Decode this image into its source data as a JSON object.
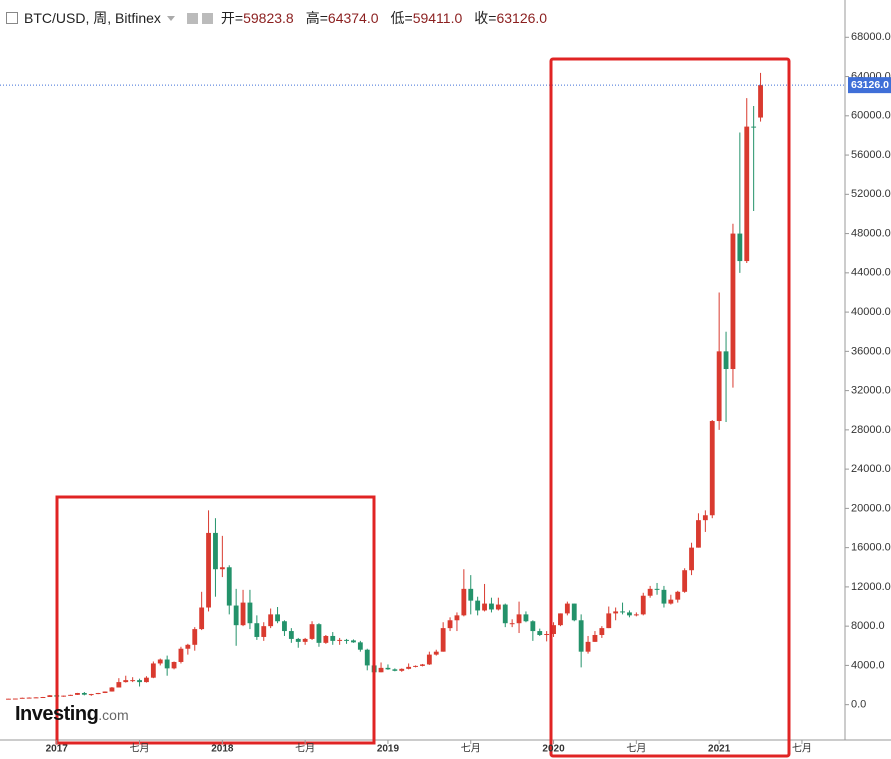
{
  "chart_data": {
    "type": "candlestick",
    "title": "BTC/USD, 周, Bitfinex",
    "ohlc_labels": [
      "开=",
      "高=",
      "低=",
      "收="
    ],
    "ohlc_values": [
      59823.8,
      64374.0,
      59411.0,
      63126.0
    ],
    "ohlc_value_labels": [
      "59823.8",
      "64374.0",
      "59411.0",
      "63126.0"
    ],
    "last_price": {
      "value": 63126.0,
      "label": "63126.0"
    },
    "brand": [
      "Investing",
      ".com"
    ],
    "up_color": "#d93a2f",
    "down_color": "#23926a",
    "ylim": [
      -3600,
      71800
    ],
    "yticks": [
      {
        "value": 0,
        "label": "0.0"
      },
      {
        "value": 4000,
        "label": "4000.0"
      },
      {
        "value": 8000,
        "label": "8000.0"
      },
      {
        "value": 12000,
        "label": "12000.0"
      },
      {
        "value": 16000,
        "label": "16000.0"
      },
      {
        "value": 20000,
        "label": "20000.0"
      },
      {
        "value": 24000,
        "label": "24000.0"
      },
      {
        "value": 28000,
        "label": "28000.0"
      },
      {
        "value": 32000,
        "label": "32000.0"
      },
      {
        "value": 36000,
        "label": "36000.0"
      },
      {
        "value": 40000,
        "label": "40000.0"
      },
      {
        "value": 44000,
        "label": "44000.0"
      },
      {
        "value": 48000,
        "label": "48000.0"
      },
      {
        "value": 52000,
        "label": "52000.0"
      },
      {
        "value": 56000,
        "label": "56000.0"
      },
      {
        "value": 60000,
        "label": "60000.0"
      },
      {
        "value": 64000,
        "label": "64000.0"
      },
      {
        "value": 68000,
        "label": "68000.0"
      }
    ],
    "categories": [
      null,
      null,
      null,
      null,
      null,
      null,
      null,
      "2017",
      null,
      null,
      null,
      null,
      null,
      null,
      null,
      null,
      null,
      null,
      null,
      "七月",
      null,
      null,
      null,
      null,
      null,
      null,
      null,
      null,
      null,
      null,
      null,
      "2018",
      null,
      null,
      null,
      null,
      null,
      null,
      null,
      null,
      null,
      null,
      null,
      "七月",
      null,
      null,
      null,
      null,
      null,
      null,
      null,
      null,
      null,
      null,
      null,
      "2019",
      null,
      null,
      null,
      null,
      null,
      null,
      null,
      null,
      null,
      null,
      null,
      "七月",
      null,
      null,
      null,
      null,
      null,
      null,
      null,
      null,
      null,
      null,
      null,
      "2020",
      null,
      null,
      null,
      null,
      null,
      null,
      null,
      null,
      null,
      null,
      null,
      "七月",
      null,
      null,
      null,
      null,
      null,
      null,
      null,
      null,
      null,
      null,
      null,
      "2021",
      null,
      null,
      null,
      null,
      null,
      null,
      null,
      null,
      null,
      null,
      null,
      "七月"
    ],
    "open": [
      600,
      610,
      625,
      700,
      720,
      745,
      780,
      960,
      820,
      920,
      1000,
      1190,
      1020,
      1080,
      1190,
      1340,
      1750,
      2300,
      2500,
      2500,
      2300,
      2750,
      4200,
      4600,
      3700,
      4350,
      5700,
      6100,
      7700,
      9900,
      17500,
      13800,
      14000,
      10100,
      8100,
      10400,
      8300,
      6900,
      8000,
      9200,
      8500,
      7500,
      6700,
      6400,
      6700,
      8200,
      6300,
      7000,
      6500,
      6600,
      6550,
      6350,
      5600,
      4000,
      3300,
      3750,
      3600,
      3450,
      3650,
      3850,
      3950,
      4100,
      5100,
      5400,
      7800,
      8600,
      9100,
      11800,
      10600,
      9600,
      10300,
      9700,
      10200,
      8300,
      8300,
      9200,
      8500,
      7500,
      7100,
      7200,
      8100,
      9300,
      10300,
      8600,
      5400,
      6400,
      7100,
      7800,
      9300,
      9500,
      9400,
      9100,
      9200,
      11100,
      11800,
      11700,
      10300,
      10700,
      11500,
      13700,
      16000,
      18800,
      19300,
      28900,
      36000,
      34200,
      48000,
      45200,
      58900,
      59823.8,
      null,
      null,
      null,
      null,
      null,
      null
    ],
    "high": [
      610,
      630,
      720,
      750,
      760,
      790,
      980,
      1150,
      930,
      1010,
      1200,
      1290,
      1100,
      1200,
      1350,
      1800,
      2700,
      2950,
      2800,
      2650,
      2900,
      4400,
      4700,
      5000,
      4400,
      5900,
      6200,
      7900,
      11500,
      19800,
      19000,
      17200,
      14200,
      11800,
      11700,
      11700,
      9100,
      8400,
      9800,
      9950,
      8600,
      7800,
      6800,
      6800,
      8500,
      8300,
      7100,
      7400,
      6800,
      6700,
      6650,
      6500,
      5700,
      4300,
      4300,
      4100,
      3700,
      3700,
      4200,
      4000,
      4150,
      5400,
      5600,
      8400,
      8900,
      9400,
      13800,
      13200,
      11000,
      12300,
      10900,
      10900,
      10300,
      8700,
      10500,
      9500,
      8600,
      7750,
      7500,
      8400,
      9300,
      10500,
      10300,
      9200,
      7000,
      7500,
      8000,
      10000,
      9900,
      10400,
      9600,
      9400,
      11400,
      12100,
      12400,
      12100,
      11200,
      11600,
      13900,
      16500,
      19500,
      19800,
      29000,
      42000,
      38000,
      49000,
      58300,
      61800,
      61000,
      64374.0,
      null,
      null,
      null,
      null,
      null,
      null
    ],
    "low": [
      590,
      600,
      625,
      690,
      720,
      740,
      780,
      750,
      800,
      900,
      990,
      950,
      900,
      1070,
      1180,
      1330,
      1750,
      2250,
      2300,
      1850,
      2250,
      2700,
      4000,
      2950,
      3600,
      4200,
      5100,
      5500,
      7600,
      9500,
      11000,
      13000,
      9200,
      6000,
      8000,
      7700,
      6600,
      6500,
      7800,
      8300,
      7000,
      6300,
      5800,
      6100,
      6600,
      5900,
      6200,
      6100,
      6100,
      6200,
      6300,
      5400,
      3500,
      3200,
      3300,
      3550,
      3400,
      3350,
      3600,
      3800,
      3900,
      4050,
      5000,
      5400,
      7500,
      7500,
      9000,
      9200,
      9100,
      9500,
      9400,
      9600,
      7900,
      7900,
      7300,
      8400,
      6500,
      7000,
      6450,
      6900,
      8000,
      9100,
      8500,
      3800,
      5200,
      6400,
      6800,
      7800,
      8600,
      9200,
      8900,
      9000,
      9100,
      10900,
      11200,
      9900,
      10200,
      10400,
      11400,
      13200,
      16000,
      17600,
      19000,
      28000,
      28800,
      32300,
      44000,
      45000,
      50300,
      59411.0,
      null,
      null,
      null,
      null,
      null,
      null
    ],
    "close": [
      610,
      625,
      700,
      720,
      745,
      780,
      960,
      820,
      920,
      1000,
      1190,
      1020,
      1080,
      1190,
      1340,
      1750,
      2300,
      2500,
      2500,
      2300,
      2750,
      4200,
      4600,
      3700,
      4350,
      5700,
      6100,
      7700,
      9900,
      17500,
      13800,
      14000,
      10100,
      8100,
      10400,
      8300,
      6900,
      8000,
      9200,
      8500,
      7500,
      6700,
      6400,
      6700,
      8200,
      6300,
      7000,
      6500,
      6600,
      6550,
      6350,
      5600,
      4000,
      3300,
      3750,
      3600,
      3450,
      3650,
      3850,
      3950,
      4100,
      5100,
      5400,
      7800,
      8600,
      9100,
      11800,
      10600,
      9600,
      10300,
      9700,
      10200,
      8300,
      8300,
      9200,
      8500,
      7500,
      7100,
      7200,
      8100,
      9300,
      10300,
      8600,
      5400,
      6400,
      7100,
      7800,
      9300,
      9500,
      9400,
      9100,
      9200,
      11100,
      11800,
      11700,
      10300,
      10700,
      11500,
      13700,
      16000,
      18800,
      19300,
      28900,
      36000,
      34200,
      48000,
      45200,
      58900,
      58800,
      63126.0,
      null,
      null,
      null,
      null,
      null,
      null
    ]
  }
}
